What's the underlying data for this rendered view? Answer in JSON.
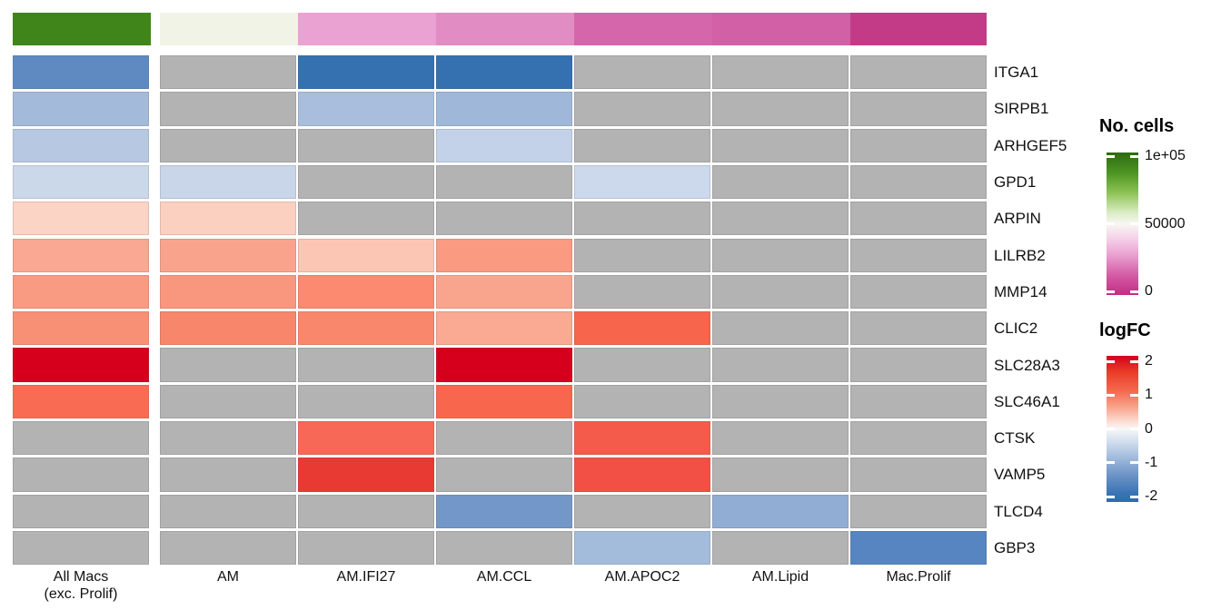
{
  "chart_data": {
    "type": "heatmap",
    "title": "",
    "columns": [
      "All Macs\n(exc. Prolif)",
      "AM",
      "AM.IFI27",
      "AM.CCL",
      "AM.APOC2",
      "AM.Lipid",
      "Mac.Prolif"
    ],
    "rows": [
      "ITGA1",
      "SIRPB1",
      "ARHGEF5",
      "GPD1",
      "ARPIN",
      "LILRB2",
      "MMP14",
      "CLIC2",
      "SLC28A3",
      "SLC46A1",
      "CTSK",
      "VAMP5",
      "TLCD4",
      "GBP3"
    ],
    "value_name": "logFC",
    "value_range": [
      -2,
      2
    ],
    "na_color": "#b3b3b3",
    "values": [
      [
        -1.4,
        null,
        -1.9,
        -1.9,
        null,
        null,
        null
      ],
      [
        -0.7,
        null,
        -0.65,
        -0.75,
        null,
        null,
        null
      ],
      [
        -0.55,
        null,
        null,
        -0.4,
        null,
        null,
        null
      ],
      [
        -0.33,
        -0.42,
        null,
        null,
        -0.34,
        null,
        null
      ],
      [
        0.3,
        0.33,
        null,
        null,
        null,
        null,
        null
      ],
      [
        0.68,
        0.72,
        0.45,
        0.78,
        null,
        null,
        null
      ],
      [
        0.77,
        0.8,
        1.0,
        0.7,
        null,
        null,
        null
      ],
      [
        0.85,
        0.93,
        0.92,
        0.67,
        1.2,
        null,
        null
      ],
      [
        2.2,
        null,
        null,
        2.2,
        null,
        null,
        null
      ],
      [
        null,
        1.13,
        null,
        1.15,
        null,
        null,
        null
      ],
      [
        null,
        null,
        1.16,
        null,
        1.28,
        null,
        null
      ],
      [
        null,
        null,
        1.65,
        null,
        1.4,
        null,
        null
      ],
      [
        null,
        null,
        null,
        -1.1,
        null,
        -0.85,
        null
      ],
      [
        null,
        null,
        null,
        null,
        -0.67,
        null,
        -1.45
      ]
    ],
    "colors": [
      [
        "#5e8ac1",
        null,
        "#3570b1",
        "#3570b1",
        null,
        null,
        null
      ],
      [
        "#a3bada",
        null,
        "#a9bedd",
        "#9fb7d9",
        null,
        null,
        null
      ],
      [
        "#b6c8e2",
        null,
        null,
        "#c3d2e8",
        null,
        null,
        null
      ],
      [
        "#cbd8ea",
        "#c9d6e9",
        null,
        null,
        "#ccd9ed",
        null,
        null
      ],
      [
        "#fcd4c5",
        "#fbd0c0",
        null,
        null,
        null,
        null,
        null
      ],
      [
        "#faa893",
        "#faa38c",
        "#fcc6b5",
        "#f99a81",
        null,
        null,
        null
      ],
      [
        "#f89b82",
        "#f8977e",
        "#fb8a71",
        "#f9a58e",
        null,
        null,
        null
      ],
      [
        "#f89076",
        "#f8866b",
        "#f8876c",
        "#faa992",
        "#f6654c",
        null,
        null
      ],
      [
        "#d6001c",
        null,
        null,
        "#d6001c",
        null,
        null,
        null
      ],
      [
        "#f96c53",
        null,
        null,
        "#f8674d",
        null,
        null,
        null
      ],
      [
        null,
        null,
        "#f76857",
        null,
        "#f55b4a",
        null,
        null
      ],
      [
        null,
        null,
        "#e83a33",
        null,
        "#f25044",
        null,
        null
      ],
      [
        null,
        null,
        null,
        "#7397c8",
        null,
        "#92add4",
        null
      ],
      [
        null,
        null,
        null,
        null,
        "#a3bcdc",
        null,
        "#5685c1"
      ]
    ],
    "column_annotation": {
      "name": "No. cells",
      "colors": [
        "#3f8519",
        "#f1f3e6",
        "#e9a2d2",
        "#e28cc4",
        "#d566ab",
        "#d160a7",
        "#c33b86"
      ]
    },
    "legends": [
      {
        "title": "No. cells",
        "ticks": [
          "1e+05",
          "50000",
          "0"
        ],
        "gradient": [
          {
            "c": "#2d6a10",
            "p": 0
          },
          {
            "c": "#4c9422",
            "p": 14
          },
          {
            "c": "#8cc153",
            "p": 28
          },
          {
            "c": "#d9ecc2",
            "p": 42
          },
          {
            "c": "#f8f7f4",
            "p": 50
          },
          {
            "c": "#f5d2e9",
            "p": 60
          },
          {
            "c": "#e9a0d1",
            "p": 72
          },
          {
            "c": "#d45ca6",
            "p": 86
          },
          {
            "c": "#c22d84",
            "p": 100
          }
        ]
      },
      {
        "title": "logFC",
        "ticks": [
          "2",
          "1",
          "0",
          "-1",
          "-2"
        ],
        "gradient": [
          {
            "c": "#d4001f",
            "p": 0
          },
          {
            "c": "#e93c28",
            "p": 11
          },
          {
            "c": "#f4694e",
            "p": 24
          },
          {
            "c": "#f9a992",
            "p": 36
          },
          {
            "c": "#fde3da",
            "p": 46
          },
          {
            "c": "#f7f7f7",
            "p": 50
          },
          {
            "c": "#dde6f1",
            "p": 56
          },
          {
            "c": "#a8c0de",
            "p": 68
          },
          {
            "c": "#6f95c8",
            "p": 81
          },
          {
            "c": "#3a74b4",
            "p": 94
          },
          {
            "c": "#2f6bb0",
            "p": 100
          }
        ]
      }
    ]
  }
}
